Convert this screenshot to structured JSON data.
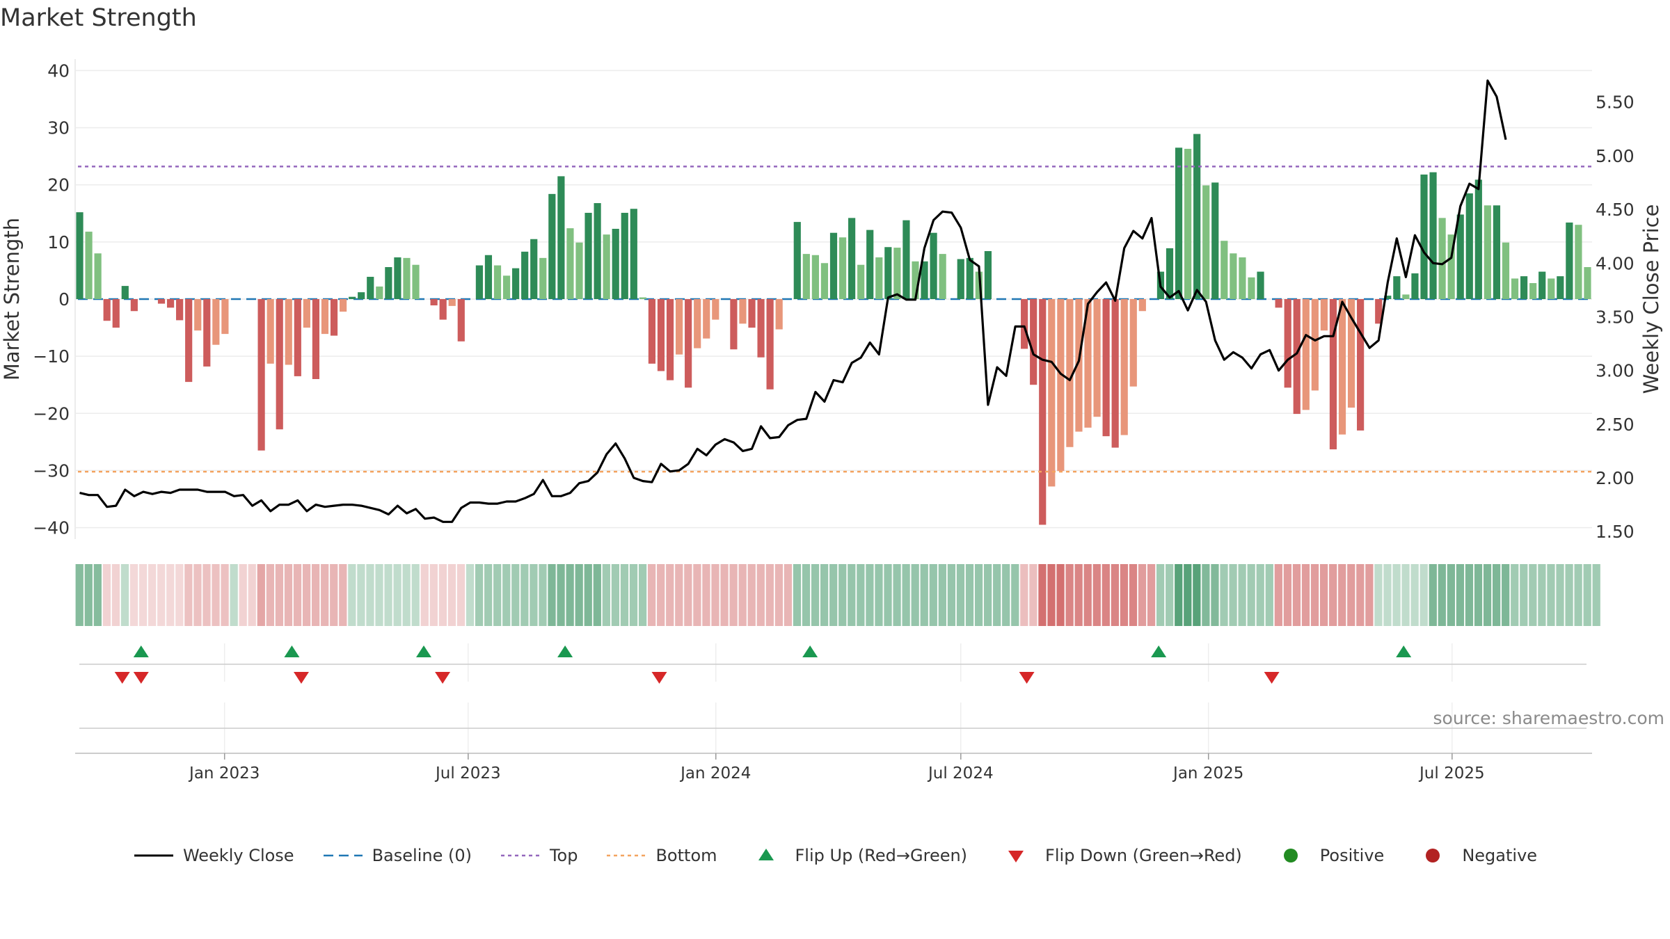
{
  "title": "Market Strength",
  "source": "source: sharemaestro.com",
  "colors": {
    "strong_green": "#2e8b57",
    "light_green": "#80c080",
    "strong_red": "#cd5c5c",
    "light_red": "#e8967a",
    "close_line": "#000000",
    "baseline": "#1f77b4",
    "top": "#9467bd",
    "bottom": "#f4a460",
    "flip_up": "#1a9850",
    "flip_down": "#d62728",
    "positive": "#228b22",
    "negative": "#b22222"
  },
  "legend": [
    {
      "key": "close",
      "label": "Weekly Close"
    },
    {
      "key": "baseline",
      "label": "Baseline (0)"
    },
    {
      "key": "top",
      "label": "Top"
    },
    {
      "key": "bottom",
      "label": "Bottom"
    },
    {
      "key": "flip_up",
      "label": "Flip Up (Red→Green)"
    },
    {
      "key": "flip_down",
      "label": "Flip Down (Green→Red)"
    },
    {
      "key": "positive",
      "label": "Positive"
    },
    {
      "key": "negative",
      "label": "Negative"
    }
  ],
  "chart_data": {
    "type": "bar",
    "title": "Market Strength",
    "ylabel": "Market Strength",
    "y2label": "Weekly Close Price",
    "ylim": [
      -42,
      42
    ],
    "y2lim": [
      1.43,
      5.9
    ],
    "yticks": [
      40,
      30,
      20,
      10,
      0,
      -10,
      -20,
      -30,
      -40
    ],
    "ytick_labels": [
      "40",
      "30",
      "20",
      "10",
      "0",
      "−10",
      "−20",
      "−30",
      "−40"
    ],
    "y2ticks": [
      5.5,
      5.0,
      4.5,
      4.0,
      3.5,
      3.0,
      2.5,
      2.0,
      1.5
    ],
    "y2tick_labels": [
      "5.50",
      "5.00",
      "4.50",
      "4.00",
      "3.50",
      "3.00",
      "2.50",
      "2.00",
      "1.50"
    ],
    "x_start": "2022-09-12",
    "x_end": "2025-10-13",
    "xticks": [
      "2023-01-01",
      "2023-07-01",
      "2024-01-01",
      "2024-07-01",
      "2025-01-01",
      "2025-07-01"
    ],
    "xtick_labels": [
      "Jan 2023",
      "Jul 2023",
      "Jan 2024",
      "Jul 2024",
      "Jan 2025",
      "Jul 2025"
    ],
    "top": 23.2,
    "bottom": -30.2,
    "baseline": 0,
    "strength": [
      15.2,
      11.8,
      8.0,
      -3.8,
      -5.0,
      2.3,
      -2.1,
      0,
      0,
      -0.8,
      -1.5,
      -3.7,
      -14.5,
      -5.5,
      -11.8,
      -8.0,
      -6.1,
      0,
      0,
      0,
      -26.5,
      -11.3,
      -22.8,
      -11.5,
      -13.5,
      -5.0,
      -14.0,
      -6.1,
      -6.4,
      -2.2,
      0.4,
      1.2,
      3.9,
      2.2,
      5.6,
      7.3,
      7.2,
      6.0,
      0,
      -1.1,
      -3.6,
      -1.2,
      -7.4,
      0,
      5.9,
      7.7,
      5.9,
      4.1,
      5.4,
      8.3,
      10.5,
      7.2,
      18.4,
      21.5,
      12.4,
      9.9,
      15.1,
      16.8,
      11.3,
      12.3,
      15.1,
      15.8,
      0.3,
      -11.3,
      -12.6,
      -14.2,
      -9.7,
      -15.5,
      -8.6,
      -6.9,
      -3.6,
      0,
      -8.8,
      -4.3,
      -5.0,
      -10.2,
      -15.8,
      -5.3,
      0,
      13.5,
      7.9,
      7.7,
      6.3,
      11.6,
      10.8,
      14.2,
      6.0,
      12.1,
      7.3,
      9.1,
      9.0,
      13.8,
      6.6,
      6.6,
      11.6,
      7.9,
      0,
      7.0,
      7.2,
      4.8,
      8.4,
      0,
      0,
      0,
      -8.7,
      -15.0,
      -39.5,
      -32.8,
      -30.1,
      -25.9,
      -23.2,
      -22.5,
      -20.6,
      -24.0,
      -26.0,
      -23.8,
      -15.3,
      -2.1,
      0,
      4.8,
      8.9,
      26.5,
      26.3,
      28.9,
      19.9,
      20.4,
      10.2,
      8.0,
      7.3,
      3.8,
      4.8,
      0,
      -1.5,
      -15.5,
      -20.1,
      -19.4,
      -16.0,
      -5.5,
      -26.3,
      -23.7,
      -19.0,
      -23.0,
      0,
      -4.3,
      0.6,
      4.0,
      0.8,
      4.5,
      21.8,
      22.2,
      14.2,
      11.3,
      14.8,
      18.5,
      20.9,
      16.4,
      16.4,
      9.9,
      3.6,
      4.0,
      2.8,
      4.8,
      3.6,
      4.0,
      13.4,
      13.0,
      5.6
    ],
    "close": [
      1.86,
      1.84,
      1.84,
      1.73,
      1.74,
      1.89,
      1.83,
      1.87,
      1.85,
      1.87,
      1.86,
      1.89,
      1.89,
      1.89,
      1.87,
      1.87,
      1.87,
      1.83,
      1.84,
      1.74,
      1.79,
      1.69,
      1.75,
      1.75,
      1.79,
      1.69,
      1.75,
      1.73,
      1.74,
      1.75,
      1.75,
      1.74,
      1.72,
      1.7,
      1.66,
      1.74,
      1.67,
      1.71,
      1.62,
      1.63,
      1.59,
      1.59,
      1.72,
      1.77,
      1.77,
      1.76,
      1.76,
      1.78,
      1.78,
      1.81,
      1.85,
      1.98,
      1.83,
      1.83,
      1.86,
      1.95,
      1.97,
      2.05,
      2.22,
      2.32,
      2.18,
      2.0,
      1.97,
      1.96,
      2.13,
      2.06,
      2.07,
      2.13,
      2.27,
      2.21,
      2.31,
      2.36,
      2.33,
      2.25,
      2.27,
      2.48,
      2.37,
      2.38,
      2.49,
      2.54,
      2.55,
      2.8,
      2.71,
      2.91,
      2.89,
      3.07,
      3.12,
      3.26,
      3.15,
      3.68,
      3.71,
      3.66,
      3.66,
      4.14,
      4.4,
      4.48,
      4.47,
      4.33,
      4.03,
      3.97,
      2.68,
      3.03,
      2.95,
      3.41,
      3.41,
      3.15,
      3.1,
      3.08,
      2.97,
      2.91,
      3.09,
      3.62,
      3.73,
      3.82,
      3.65,
      4.14,
      4.3,
      4.23,
      4.42,
      3.78,
      3.68,
      3.74,
      3.56,
      3.75,
      3.64,
      3.28,
      3.1,
      3.17,
      3.12,
      3.02,
      3.15,
      3.19,
      3.0,
      3.1,
      3.16,
      3.33,
      3.28,
      3.32,
      3.32,
      3.64,
      3.49,
      3.35,
      3.21,
      3.28,
      3.82,
      4.23,
      3.87,
      4.26,
      4.1,
      4.0,
      3.99,
      4.05,
      4.53,
      4.74,
      4.69,
      5.7,
      5.55,
      5.15
    ],
    "flip_up": [
      "2022-10-31",
      "2023-02-20",
      "2023-05-29",
      "2023-09-11",
      "2024-03-11",
      "2024-11-25",
      "2025-05-26"
    ],
    "flip_down": [
      "2022-10-17",
      "2022-10-31",
      "2023-02-27",
      "2023-06-12",
      "2023-11-20",
      "2024-08-19",
      "2025-02-17"
    ],
    "strip": [
      [
        "g",
        0.58
      ],
      [
        "g",
        0.58
      ],
      [
        "g",
        0.58
      ],
      [
        "r",
        0.28
      ],
      [
        "r",
        0.28
      ],
      [
        "g",
        0.3
      ],
      [
        "r",
        0.24
      ],
      [
        "r",
        0.24
      ],
      [
        "r",
        0.24
      ],
      [
        "r",
        0.24
      ],
      [
        "r",
        0.24
      ],
      [
        "r",
        0.24
      ],
      [
        "r",
        0.38
      ],
      [
        "r",
        0.38
      ],
      [
        "r",
        0.38
      ],
      [
        "r",
        0.38
      ],
      [
        "r",
        0.38
      ],
      [
        "g",
        0.3
      ],
      [
        "r",
        0.28
      ],
      [
        "r",
        0.28
      ],
      [
        "r",
        0.55
      ],
      [
        "r",
        0.45
      ],
      [
        "r",
        0.45
      ],
      [
        "r",
        0.45
      ],
      [
        "r",
        0.45
      ],
      [
        "r",
        0.45
      ],
      [
        "r",
        0.45
      ],
      [
        "r",
        0.45
      ],
      [
        "r",
        0.45
      ],
      [
        "r",
        0.45
      ],
      [
        "g",
        0.3
      ],
      [
        "g",
        0.3
      ],
      [
        "g",
        0.3
      ],
      [
        "g",
        0.3
      ],
      [
        "g",
        0.3
      ],
      [
        "g",
        0.3
      ],
      [
        "g",
        0.3
      ],
      [
        "g",
        0.3
      ],
      [
        "r",
        0.28
      ],
      [
        "r",
        0.28
      ],
      [
        "r",
        0.28
      ],
      [
        "r",
        0.28
      ],
      [
        "r",
        0.28
      ],
      [
        "g",
        0.3
      ],
      [
        "g",
        0.45
      ],
      [
        "g",
        0.45
      ],
      [
        "g",
        0.45
      ],
      [
        "g",
        0.45
      ],
      [
        "g",
        0.45
      ],
      [
        "g",
        0.45
      ],
      [
        "g",
        0.45
      ],
      [
        "g",
        0.45
      ],
      [
        "g",
        0.62
      ],
      [
        "g",
        0.62
      ],
      [
        "g",
        0.62
      ],
      [
        "g",
        0.62
      ],
      [
        "g",
        0.62
      ],
      [
        "g",
        0.62
      ],
      [
        "g",
        0.45
      ],
      [
        "g",
        0.45
      ],
      [
        "g",
        0.45
      ],
      [
        "g",
        0.45
      ],
      [
        "g",
        0.45
      ],
      [
        "r",
        0.45
      ],
      [
        "r",
        0.45
      ],
      [
        "r",
        0.45
      ],
      [
        "r",
        0.45
      ],
      [
        "r",
        0.45
      ],
      [
        "r",
        0.45
      ],
      [
        "r",
        0.45
      ],
      [
        "r",
        0.45
      ],
      [
        "r",
        0.45
      ],
      [
        "r",
        0.45
      ],
      [
        "r",
        0.45
      ],
      [
        "r",
        0.45
      ],
      [
        "r",
        0.45
      ],
      [
        "r",
        0.45
      ],
      [
        "r",
        0.45
      ],
      [
        "r",
        0.45
      ],
      [
        "g",
        0.5
      ],
      [
        "g",
        0.5
      ],
      [
        "g",
        0.5
      ],
      [
        "g",
        0.5
      ],
      [
        "g",
        0.5
      ],
      [
        "g",
        0.5
      ],
      [
        "g",
        0.5
      ],
      [
        "g",
        0.5
      ],
      [
        "g",
        0.5
      ],
      [
        "g",
        0.5
      ],
      [
        "g",
        0.5
      ],
      [
        "g",
        0.5
      ],
      [
        "g",
        0.5
      ],
      [
        "g",
        0.5
      ],
      [
        "g",
        0.5
      ],
      [
        "g",
        0.5
      ],
      [
        "g",
        0.5
      ],
      [
        "g",
        0.5
      ],
      [
        "g",
        0.5
      ],
      [
        "g",
        0.5
      ],
      [
        "g",
        0.5
      ],
      [
        "g",
        0.5
      ],
      [
        "g",
        0.5
      ],
      [
        "g",
        0.5
      ],
      [
        "g",
        0.5
      ],
      [
        "r",
        0.4
      ],
      [
        "r",
        0.4
      ],
      [
        "r",
        0.88
      ],
      [
        "r",
        0.88
      ],
      [
        "r",
        0.88
      ],
      [
        "r",
        0.75
      ],
      [
        "r",
        0.75
      ],
      [
        "r",
        0.75
      ],
      [
        "r",
        0.75
      ],
      [
        "r",
        0.75
      ],
      [
        "r",
        0.75
      ],
      [
        "r",
        0.75
      ],
      [
        "r",
        0.75
      ],
      [
        "r",
        0.6
      ],
      [
        "r",
        0.6
      ],
      [
        "g",
        0.45
      ],
      [
        "g",
        0.45
      ],
      [
        "g",
        0.8
      ],
      [
        "g",
        0.8
      ],
      [
        "g",
        0.8
      ],
      [
        "g",
        0.6
      ],
      [
        "g",
        0.6
      ],
      [
        "g",
        0.45
      ],
      [
        "g",
        0.45
      ],
      [
        "g",
        0.45
      ],
      [
        "g",
        0.45
      ],
      [
        "g",
        0.45
      ],
      [
        "g",
        0.45
      ],
      [
        "r",
        0.6
      ],
      [
        "r",
        0.6
      ],
      [
        "r",
        0.6
      ],
      [
        "r",
        0.6
      ],
      [
        "r",
        0.6
      ],
      [
        "r",
        0.6
      ],
      [
        "r",
        0.6
      ],
      [
        "r",
        0.6
      ],
      [
        "r",
        0.6
      ],
      [
        "r",
        0.6
      ],
      [
        "r",
        0.6
      ],
      [
        "g",
        0.3
      ],
      [
        "g",
        0.3
      ],
      [
        "g",
        0.3
      ],
      [
        "g",
        0.3
      ],
      [
        "g",
        0.3
      ],
      [
        "g",
        0.3
      ],
      [
        "g",
        0.62
      ],
      [
        "g",
        0.62
      ],
      [
        "g",
        0.62
      ],
      [
        "g",
        0.62
      ],
      [
        "g",
        0.62
      ],
      [
        "g",
        0.62
      ],
      [
        "g",
        0.62
      ],
      [
        "g",
        0.62
      ],
      [
        "g",
        0.62
      ],
      [
        "g",
        0.45
      ],
      [
        "g",
        0.45
      ],
      [
        "g",
        0.45
      ],
      [
        "g",
        0.45
      ],
      [
        "g",
        0.45
      ],
      [
        "g",
        0.45
      ],
      [
        "g",
        0.45
      ],
      [
        "g",
        0.45
      ],
      [
        "g",
        0.45
      ],
      [
        "g",
        0.45
      ]
    ]
  }
}
